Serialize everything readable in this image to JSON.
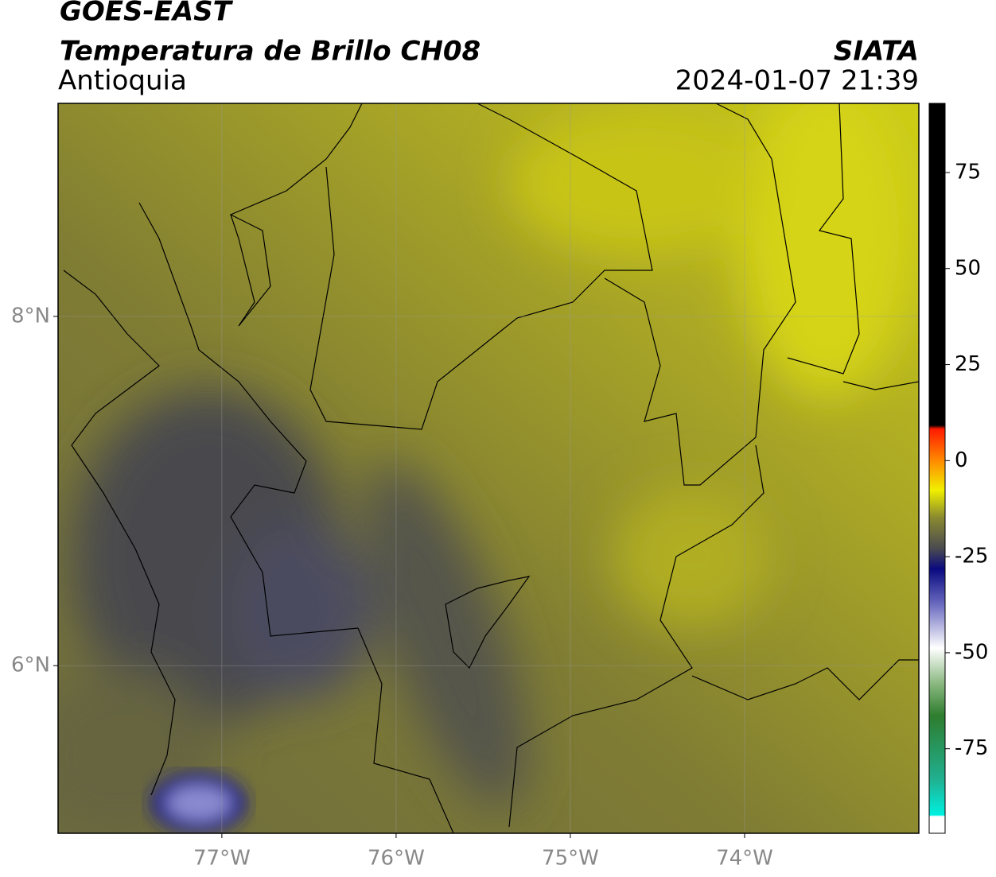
{
  "header": {
    "title": "GOES-EAST",
    "subtitle": "Temperatura de Brillo CH08",
    "region": "Antioquia",
    "source": "SIATA",
    "datetime": "2024-01-07 21:39"
  },
  "map": {
    "xlim": [
      -77.94,
      -73.0
    ],
    "ylim": [
      5.04,
      9.22
    ],
    "grid": true,
    "xticks": [
      {
        "value": -77,
        "label": "77°W"
      },
      {
        "value": -76,
        "label": "76°W"
      },
      {
        "value": -75,
        "label": "75°W"
      },
      {
        "value": -74,
        "label": "74°W"
      }
    ],
    "yticks": [
      {
        "value": 6,
        "label": "6°N"
      },
      {
        "value": 8,
        "label": "8°N"
      }
    ]
  },
  "colorbar": {
    "lim": [
      -97,
      93
    ],
    "ticks": [
      75,
      50,
      25,
      0,
      -25,
      -50,
      -75
    ]
  }
}
